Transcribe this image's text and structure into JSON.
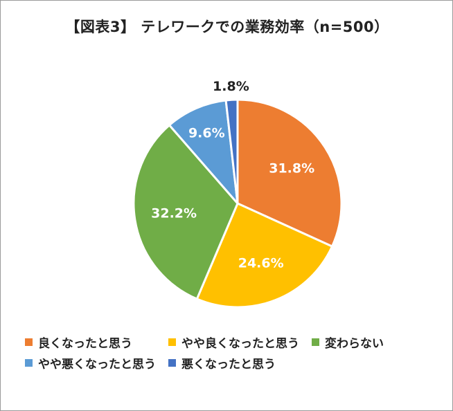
{
  "chart_data": {
    "type": "pie",
    "title": "【図表3】 テレワークでの業務効率（n=500）",
    "categories": [
      "良くなったと思う",
      "やや良くなったと思う",
      "変わらない",
      "やや悪くなったと思う",
      "悪くなったと思う"
    ],
    "values": [
      31.8,
      24.6,
      32.2,
      9.6,
      1.8
    ],
    "labels": [
      "31.8%",
      "24.6%",
      "32.2%",
      "9.6%",
      "1.8%"
    ],
    "colors": [
      "#ED7D31",
      "#FFC000",
      "#70AD47",
      "#5B9BD5",
      "#4472C4"
    ],
    "label_colors": [
      "#ffffff",
      "#ffffff",
      "#ffffff",
      "#ffffff",
      "#222222"
    ],
    "start_angle_deg": 0,
    "direction": "clockwise",
    "legend_position": "bottom"
  }
}
